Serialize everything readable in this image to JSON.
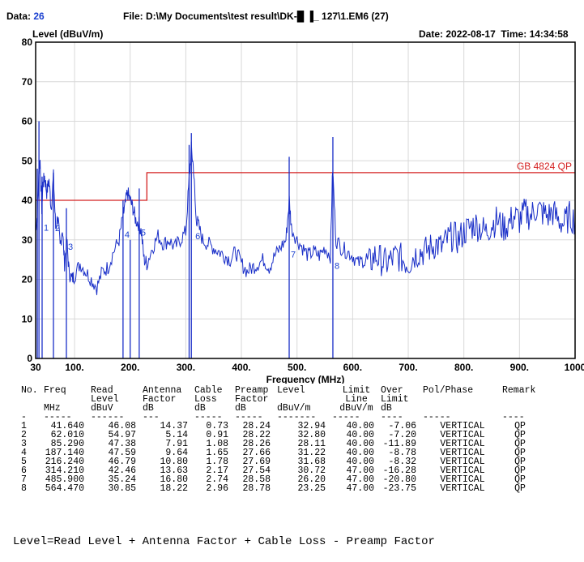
{
  "header": {
    "data_label": "Data:",
    "data_value": "26",
    "file_label": "File:",
    "file_value": "D:\\My Documents\\test result\\DK-█ ▐_ 127\\1.EM6  (27)",
    "date_label": "Date:",
    "date_value": "2022-08-17",
    "time_label": "Time:",
    "time_value": "14:34:58"
  },
  "chart_data": {
    "type": "line",
    "ylabel": "Level (dBuV/m)",
    "xlabel": "Frequency (MHz)",
    "xlim": [
      30,
      1000
    ],
    "ylim": [
      0,
      80
    ],
    "x_ticks": [
      "30",
      "100.",
      "200.",
      "300.",
      "400.",
      "500.",
      "600.",
      "700.",
      "800.",
      "900.",
      "1000"
    ],
    "x_tick_values": [
      30,
      100,
      200,
      300,
      400,
      500,
      600,
      700,
      800,
      900,
      1000
    ],
    "y_ticks": [
      "0",
      "10",
      "20",
      "30",
      "40",
      "50",
      "60",
      "70",
      "80"
    ],
    "y_tick_values": [
      0,
      10,
      20,
      30,
      40,
      50,
      60,
      70,
      80
    ],
    "grid": true,
    "limit_line": {
      "name": "GB 4824 QP",
      "color": "#d42020",
      "segments": [
        {
          "x": [
            30,
            230
          ],
          "y": 40
        },
        {
          "x": [
            230,
            1000
          ],
          "y": 47
        }
      ]
    },
    "series": [
      {
        "color": "#1a2fc8",
        "x": [
          30,
          33,
          36,
          38,
          41,
          43,
          46,
          50,
          54,
          58,
          62,
          66,
          70,
          74,
          78,
          82,
          86,
          90,
          95,
          100,
          110,
          120,
          130,
          140,
          150,
          160,
          170,
          180,
          187,
          190,
          195,
          200,
          205,
          210,
          216,
          220,
          225,
          230,
          240,
          250,
          260,
          270,
          280,
          290,
          300,
          306,
          310,
          314,
          318,
          322,
          330,
          340,
          350,
          360,
          370,
          380,
          390,
          400,
          410,
          420,
          430,
          440,
          450,
          460,
          470,
          480,
          486,
          490,
          500,
          510,
          520,
          530,
          540,
          550,
          560,
          564,
          570,
          580,
          590,
          600,
          610,
          620,
          630,
          640,
          650,
          660,
          670,
          680,
          690,
          700,
          710,
          720,
          730,
          740,
          750,
          760,
          770,
          780,
          790,
          800,
          810,
          820,
          830,
          840,
          850,
          860,
          870,
          880,
          890,
          900,
          910,
          920,
          930,
          940,
          950,
          960,
          970,
          980,
          990,
          1000
        ],
        "y": [
          33,
          36,
          48,
          50,
          38,
          44,
          46,
          42,
          45,
          38,
          46,
          33,
          36,
          28,
          33,
          24,
          30,
          22,
          20,
          21,
          24,
          22,
          20,
          18,
          22,
          23,
          27,
          30,
          36,
          38,
          42,
          40,
          38,
          35,
          34,
          32,
          25,
          24,
          28,
          31,
          29,
          30,
          28,
          30,
          32,
          45,
          53,
          48,
          36,
          34,
          30,
          29,
          28,
          27,
          26,
          25,
          27,
          24,
          22,
          23,
          24,
          25,
          23,
          26,
          28,
          30,
          40,
          33,
          30,
          28,
          26,
          27,
          26,
          28,
          26,
          48,
          30,
          28,
          27,
          26,
          24,
          25,
          24,
          26,
          25,
          24,
          25,
          26,
          25,
          24,
          26,
          27,
          27,
          28,
          29,
          28,
          30,
          31,
          30,
          32,
          33,
          34,
          33,
          32,
          34,
          35,
          33,
          34,
          36,
          35,
          37,
          36,
          38,
          37,
          36,
          37,
          35,
          34,
          36,
          35
        ]
      }
    ],
    "markers": [
      {
        "label": "1",
        "x": 41.64,
        "y": 32.94
      },
      {
        "label": "2",
        "x": 62.01,
        "y": 32.8
      },
      {
        "label": "3",
        "x": 85.29,
        "y": 28.11
      },
      {
        "label": "4",
        "x": 187.14,
        "y": 31.22
      },
      {
        "label": "5",
        "x": 216.24,
        "y": 31.68
      },
      {
        "label": "6",
        "x": 314.21,
        "y": 30.72
      },
      {
        "label": "7",
        "x": 485.9,
        "y": 26.2
      },
      {
        "label": "8",
        "x": 564.47,
        "y": 23.25
      }
    ],
    "spikes": [
      {
        "x": 33,
        "y_top": 48
      },
      {
        "x": 36,
        "y_top": 60
      },
      {
        "x": 41.64,
        "y_top": 46
      },
      {
        "x": 62.01,
        "y_top": 47
      },
      {
        "x": 85.29,
        "y_top": 38
      },
      {
        "x": 187.14,
        "y_top": 40
      },
      {
        "x": 200,
        "y_top": 30
      },
      {
        "x": 216.24,
        "y_top": 43
      },
      {
        "x": 306,
        "y_top": 54
      },
      {
        "x": 310,
        "y_top": 57
      },
      {
        "x": 485.9,
        "y_top": 51
      },
      {
        "x": 564.47,
        "y_top": 56
      }
    ]
  },
  "table": {
    "headers": [
      [
        "No.",
        "Freq",
        "Read",
        "Antenna",
        "Cable",
        "Preamp",
        "Level",
        "Limit",
        "Over",
        "Pol/Phase",
        "Remark"
      ],
      [
        "",
        "",
        "Level",
        "Factor",
        "Loss",
        "Factor",
        "",
        "Line",
        "Limit",
        "",
        ""
      ],
      [
        "",
        "MHz",
        "dBuV",
        "dB",
        "dB",
        "dB",
        "dBuV/m",
        "dBuV/m",
        "dB",
        "",
        ""
      ],
      [
        "-",
        "-----",
        "------",
        "---",
        "-----",
        "-----",
        "-------",
        "-----",
        "----",
        "-----",
        "----"
      ]
    ],
    "rows": [
      [
        "1",
        "41.640",
        "46.08",
        "14.37",
        "0.73",
        "28.24",
        "32.94",
        "40.00",
        "-7.06",
        "VERTICAL",
        "QP"
      ],
      [
        "2",
        "62.010",
        "54.97",
        "5.14",
        "0.91",
        "28.22",
        "32.80",
        "40.00",
        "-7.20",
        "VERTICAL",
        "QP"
      ],
      [
        "3",
        "85.290",
        "47.38",
        "7.91",
        "1.08",
        "28.26",
        "28.11",
        "40.00",
        "-11.89",
        "VERTICAL",
        "QP"
      ],
      [
        "4",
        "187.140",
        "47.59",
        "9.64",
        "1.65",
        "27.66",
        "31.22",
        "40.00",
        "-8.78",
        "VERTICAL",
        "QP"
      ],
      [
        "5",
        "216.240",
        "46.79",
        "10.80",
        "1.78",
        "27.69",
        "31.68",
        "40.00",
        "-8.32",
        "VERTICAL",
        "QP"
      ],
      [
        "6",
        "314.210",
        "42.46",
        "13.63",
        "2.17",
        "27.54",
        "30.72",
        "47.00",
        "-16.28",
        "VERTICAL",
        "QP"
      ],
      [
        "7",
        "485.900",
        "35.24",
        "16.80",
        "2.74",
        "28.58",
        "26.20",
        "47.00",
        "-20.80",
        "VERTICAL",
        "QP"
      ],
      [
        "8",
        "564.470",
        "30.85",
        "18.22",
        "2.96",
        "28.78",
        "23.25",
        "47.00",
        "-23.75",
        "VERTICAL",
        "QP"
      ]
    ]
  },
  "formula": "Level=Read Level + Antenna Factor + Cable Loss - Preamp Factor"
}
